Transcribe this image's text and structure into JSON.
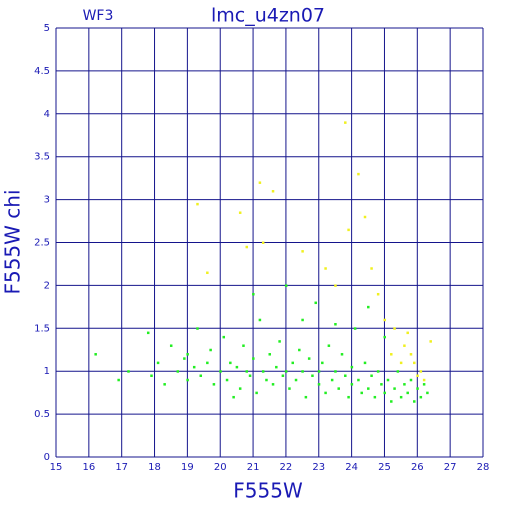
{
  "chart_data": {
    "type": "scatter",
    "title": "lmc_u4zn07",
    "subtitle": "WF3",
    "x_label": "F555W",
    "y_label": "F555W chi",
    "xlim": [
      15,
      28
    ],
    "ylim": [
      0,
      5
    ],
    "xticks": [
      15,
      16,
      17,
      18,
      19,
      20,
      21,
      22,
      23,
      24,
      25,
      26,
      27,
      28
    ],
    "yticks": [
      0,
      0.5,
      1,
      1.5,
      2,
      2.5,
      3,
      3.5,
      4,
      4.5,
      5
    ],
    "grid": true,
    "series": [
      {
        "color": "#22ee22",
        "x": [
          16.2,
          16.9,
          17.2,
          17.8,
          17.9,
          18.1,
          18.3,
          18.5,
          18.7,
          18.9,
          19.0,
          19.2,
          19.3,
          19.4,
          19.6,
          19.7,
          19.8,
          20.0,
          20.1,
          20.2,
          20.3,
          20.5,
          20.6,
          20.7,
          20.8,
          20.9,
          21.0,
          21.1,
          21.2,
          21.3,
          21.4,
          21.5,
          21.6,
          21.7,
          21.8,
          21.9,
          22.0,
          22.0,
          22.1,
          22.2,
          22.3,
          22.4,
          22.5,
          22.6,
          22.7,
          22.8,
          22.9,
          23.0,
          23.0,
          23.1,
          23.2,
          23.3,
          23.4,
          23.5,
          23.6,
          23.7,
          23.8,
          23.9,
          24.0,
          24.0,
          24.1,
          24.2,
          24.3,
          24.4,
          24.5,
          24.6,
          24.7,
          24.8,
          24.9,
          25.0,
          25.0,
          25.1,
          25.2,
          25.3,
          25.4,
          25.5,
          25.6,
          25.7,
          25.8,
          25.9,
          26.0,
          26.1,
          26.2,
          26.3,
          21.0,
          22.5,
          23.5,
          24.5,
          19.0,
          20.4
        ],
        "y": [
          1.2,
          0.9,
          1.0,
          1.45,
          0.95,
          1.1,
          0.85,
          1.3,
          1.0,
          1.15,
          0.9,
          1.05,
          1.5,
          0.95,
          1.1,
          1.25,
          0.85,
          1.0,
          1.4,
          0.9,
          1.1,
          1.05,
          0.8,
          1.3,
          1.0,
          0.95,
          1.15,
          0.75,
          1.6,
          1.0,
          0.9,
          1.2,
          0.85,
          1.05,
          1.35,
          0.95,
          2.0,
          1.0,
          0.8,
          1.1,
          0.9,
          1.25,
          1.0,
          0.7,
          1.15,
          0.95,
          1.8,
          1.0,
          0.85,
          1.1,
          0.75,
          1.3,
          0.9,
          1.0,
          0.8,
          1.2,
          0.95,
          0.7,
          1.05,
          0.85,
          1.5,
          0.9,
          0.75,
          1.1,
          0.8,
          0.95,
          0.7,
          1.0,
          0.85,
          0.75,
          1.4,
          0.9,
          0.65,
          0.8,
          1.0,
          0.7,
          0.85,
          0.75,
          0.9,
          0.65,
          0.8,
          0.7,
          0.85,
          0.75,
          1.9,
          1.6,
          1.55,
          1.75,
          1.2,
          0.7
        ]
      },
      {
        "color": "#f0f020",
        "x": [
          19.3,
          19.6,
          20.6,
          20.8,
          21.2,
          21.6,
          21.3,
          22.5,
          23.2,
          23.5,
          23.8,
          23.9,
          24.2,
          24.4,
          24.6,
          24.8,
          25.0,
          25.3,
          25.6,
          25.8,
          25.9,
          26.0,
          26.1,
          26.2,
          25.7,
          26.4,
          25.5,
          25.2
        ],
        "y": [
          2.95,
          2.15,
          2.85,
          2.45,
          3.2,
          3.1,
          2.5,
          2.4,
          2.2,
          2.0,
          3.9,
          2.65,
          3.3,
          2.8,
          2.2,
          1.9,
          1.6,
          1.5,
          1.3,
          1.2,
          1.1,
          0.95,
          1.0,
          0.9,
          1.45,
          1.35,
          1.1,
          1.2
        ]
      }
    ]
  }
}
